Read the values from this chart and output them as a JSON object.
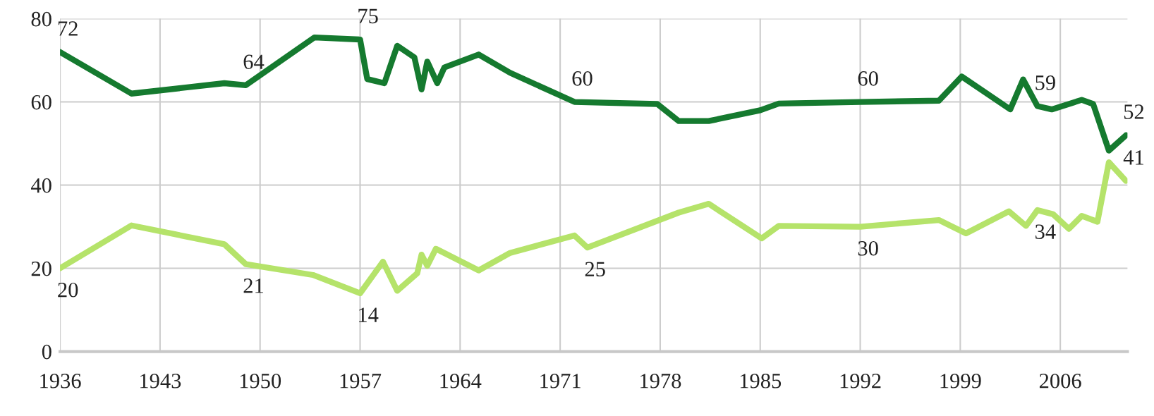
{
  "chart_data": {
    "type": "line",
    "xlim": [
      1936,
      2010.7
    ],
    "ylim": [
      0,
      80
    ],
    "xticks": [
      1936,
      1943,
      1950,
      1957,
      1964,
      1971,
      1978,
      1985,
      1992,
      1999,
      2006
    ],
    "yticks": [
      0,
      20,
      40,
      60,
      80
    ],
    "grid": true,
    "marker": "none",
    "line_style": "solid",
    "series": [
      {
        "color": "#157a2f",
        "x": [
          1936,
          1941,
          1947.5,
          1949,
          1953.8,
          1957,
          1957.5,
          1958.7,
          1959.6,
          1960.8,
          1961.3,
          1961.7,
          1962.4,
          1962.9,
          1965.3,
          1967.5,
          1972,
          1977.8,
          1979.3,
          1981.4,
          1985,
          1986.3,
          1992,
          1997.5,
          1999.1,
          2002.5,
          2003.4,
          2004.4,
          2005.4,
          2007.5,
          2008.3,
          2009.4,
          2010.6
        ],
        "values": [
          72,
          62,
          64.5,
          64,
          75.5,
          75,
          65.5,
          64.5,
          73.5,
          70.7,
          63,
          69.7,
          64.5,
          68.3,
          71.4,
          67,
          60,
          59.5,
          55.4,
          55.4,
          58,
          59.6,
          60,
          60.3,
          66.1,
          58.2,
          65.4,
          59,
          58.2,
          60.5,
          59.5,
          48.3,
          52
        ]
      },
      {
        "color": "#b5e36a",
        "x": [
          1936,
          1941,
          1947.5,
          1949,
          1953.7,
          1957,
          1958.6,
          1959.6,
          1961,
          1961.3,
          1961.7,
          1962.3,
          1965.3,
          1967.5,
          1972,
          1972.9,
          1979.3,
          1981.4,
          1985.1,
          1986.3,
          1992,
          1997.5,
          1999.4,
          2002.4,
          2003.6,
          2004.4,
          2005.5,
          2006.6,
          2007.5,
          2008.6,
          2009.4,
          2010.6
        ],
        "values": [
          20,
          30.3,
          25.8,
          21,
          18.4,
          14,
          21.6,
          14.6,
          18.8,
          23.3,
          20.6,
          24.7,
          19.5,
          23.7,
          27.9,
          25,
          33.4,
          35.5,
          27.2,
          30.2,
          30,
          31.6,
          28.4,
          33.7,
          30.2,
          34,
          33,
          29.5,
          32.6,
          31.2,
          45.5,
          41
        ]
      }
    ],
    "annotations": [
      {
        "text": "72",
        "x": 1936,
        "y": 72
      },
      {
        "text": "64",
        "x": 1949,
        "y": 64
      },
      {
        "text": "75",
        "x": 1957,
        "y": 75
      },
      {
        "text": "60",
        "x": 1972,
        "y": 60
      },
      {
        "text": "60",
        "x": 1992,
        "y": 60
      },
      {
        "text": "59",
        "x": 2004.4,
        "y": 59
      },
      {
        "text": "52",
        "x": 2010.6,
        "y": 52
      },
      {
        "text": "20",
        "x": 1936,
        "y": 20
      },
      {
        "text": "21",
        "x": 1949,
        "y": 21
      },
      {
        "text": "14",
        "x": 1957,
        "y": 14
      },
      {
        "text": "25",
        "x": 1972.9,
        "y": 25
      },
      {
        "text": "30",
        "x": 1992,
        "y": 30
      },
      {
        "text": "34",
        "x": 2004.4,
        "y": 34
      },
      {
        "text": "41",
        "x": 2010.6,
        "y": 41
      }
    ]
  }
}
